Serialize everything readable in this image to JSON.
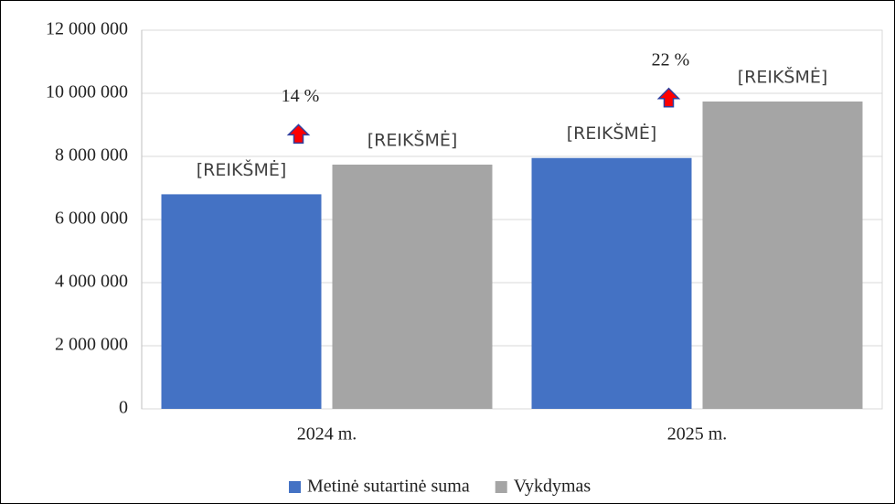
{
  "chart_data": {
    "type": "bar",
    "categories": [
      "2024 m.",
      "2025 m."
    ],
    "series": [
      {
        "name": "Metinė sutartinė suma",
        "color": "#4472c4",
        "values": [
          6800000,
          7950000
        ],
        "value_labels": [
          "[REIKŠMĖ]",
          "[REIKŠMĖ]"
        ]
      },
      {
        "name": "Vykdymas",
        "color": "#a5a5a5",
        "values": [
          7740000,
          9740000
        ],
        "value_labels": [
          "[REIKŠMĖ]",
          "[REIKŠMĖ]"
        ]
      }
    ],
    "annotations": [
      "14 %",
      "22 %"
    ],
    "ylim": [
      0,
      12000000
    ],
    "yticks": [
      0,
      {
        "value": 2000000,
        "label": "2 000 000"
      },
      {
        "value": 4000000,
        "label": "4 000 000"
      },
      {
        "value": 6000000,
        "label": "6 000 000"
      },
      {
        "value": 8000000,
        "label": "8 000 000"
      },
      {
        "value": 10000000,
        "label": "10 000 000"
      },
      {
        "value": 12000000,
        "label": "12 000 000"
      }
    ],
    "grid": true,
    "legend": "bottom"
  }
}
